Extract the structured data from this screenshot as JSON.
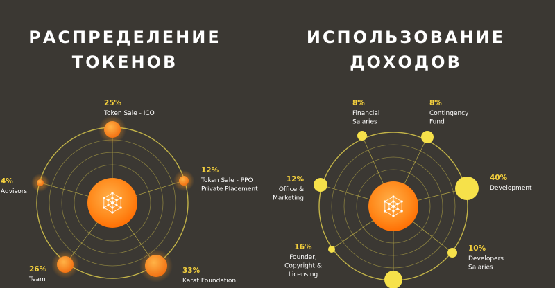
{
  "left": {
    "title_line1": "РАСПРЕДЕЛЕНИЕ",
    "title_line2": "ТОКЕНОВ"
  },
  "right": {
    "title_line1": "ИСПОЛЬЗОВАНИЕ",
    "title_line2": "ДОХОДОВ"
  },
  "colors": {
    "background": "#3b3833",
    "ring": "#c9b94a",
    "orange_dot": "#f7931e",
    "yellow_dot": "#f6e14a",
    "percent_text": "#f3cf3d",
    "center_gradient": [
      "#ffb347",
      "#ff6f00"
    ]
  },
  "center_icon": "blockchain-cube-icon",
  "chart_data": [
    {
      "type": "pie",
      "title": "РАСПРЕДЕЛЕНИЕ ТОКЕНОВ",
      "slices": [
        {
          "label": "Token Sale - ICO",
          "value": 25,
          "percent": "25%"
        },
        {
          "label": "Token Sale - PPO Private Placement",
          "value": 12,
          "percent": "12%"
        },
        {
          "label": "Karat Foundation",
          "value": 33,
          "percent": "33%"
        },
        {
          "label": "Team",
          "value": 26,
          "percent": "26%"
        },
        {
          "label": "Advisors",
          "value": 4,
          "percent": "4%"
        }
      ]
    },
    {
      "type": "pie",
      "title": "ИСПОЛЬЗОВАНИЕ ДОХОДОВ",
      "slices": [
        {
          "label": "Financial Salaries",
          "value": 8,
          "percent": "8%"
        },
        {
          "label": "Contingency Fund",
          "value": 8,
          "percent": "8%"
        },
        {
          "label": "Development",
          "value": 40,
          "percent": "40%"
        },
        {
          "label": "Developers Salaries",
          "value": 10,
          "percent": "10%"
        },
        {
          "label": "",
          "value": null,
          "percent": ""
        },
        {
          "label": "Founder, Copyright & Licensing",
          "value": 16,
          "percent": "16%"
        },
        {
          "label": "Office & Marketing",
          "value": 12,
          "percent": "12%"
        }
      ]
    }
  ]
}
